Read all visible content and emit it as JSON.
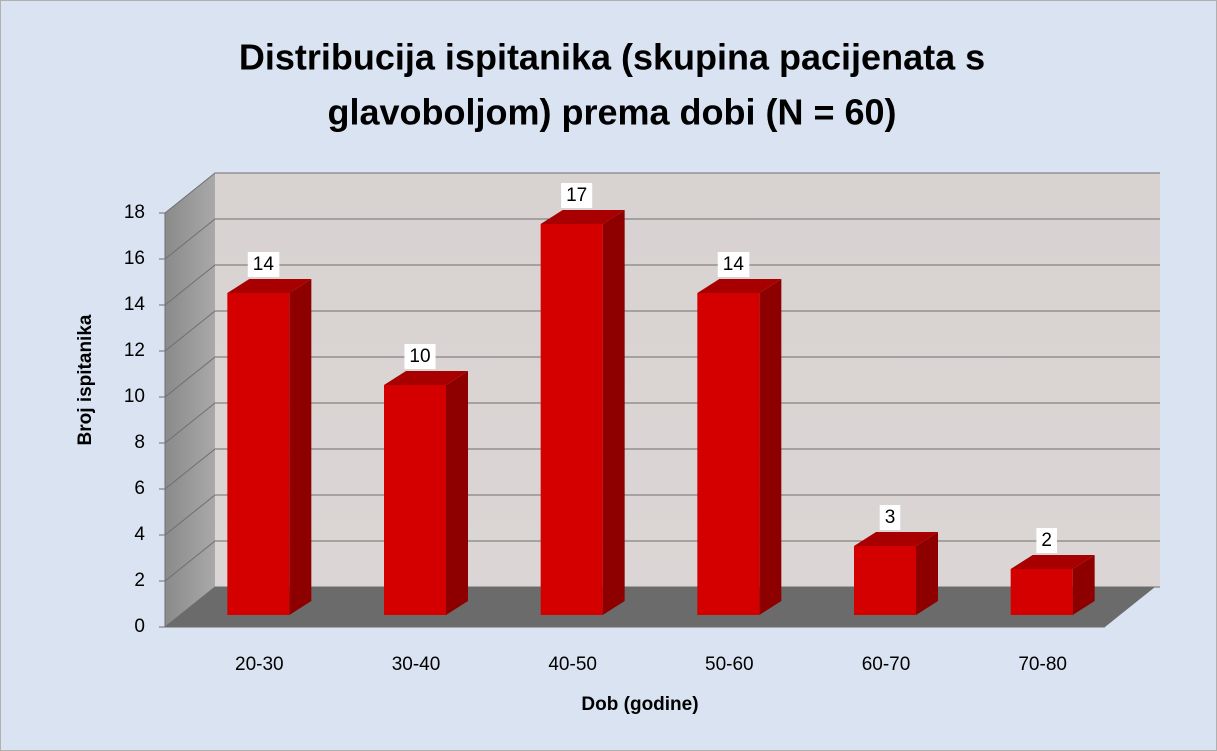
{
  "chart_data": {
    "type": "bar",
    "title": "Distribucija ispitanika (skupina pacijenata s glavoboljom) prema dobi (N = 60)",
    "x_label": "Dob (godine)",
    "y_label": "Broj ispitanika",
    "categories": [
      "20-30",
      "30-40",
      "40-50",
      "50-60",
      "60-70",
      "70-80"
    ],
    "values": [
      14,
      10,
      17,
      14,
      3,
      2
    ],
    "color": "#d40000",
    "ylim": [
      0,
      18
    ],
    "yticks": [
      0,
      2,
      4,
      6,
      8,
      10,
      12,
      14,
      16,
      18
    ],
    "grid": true
  }
}
